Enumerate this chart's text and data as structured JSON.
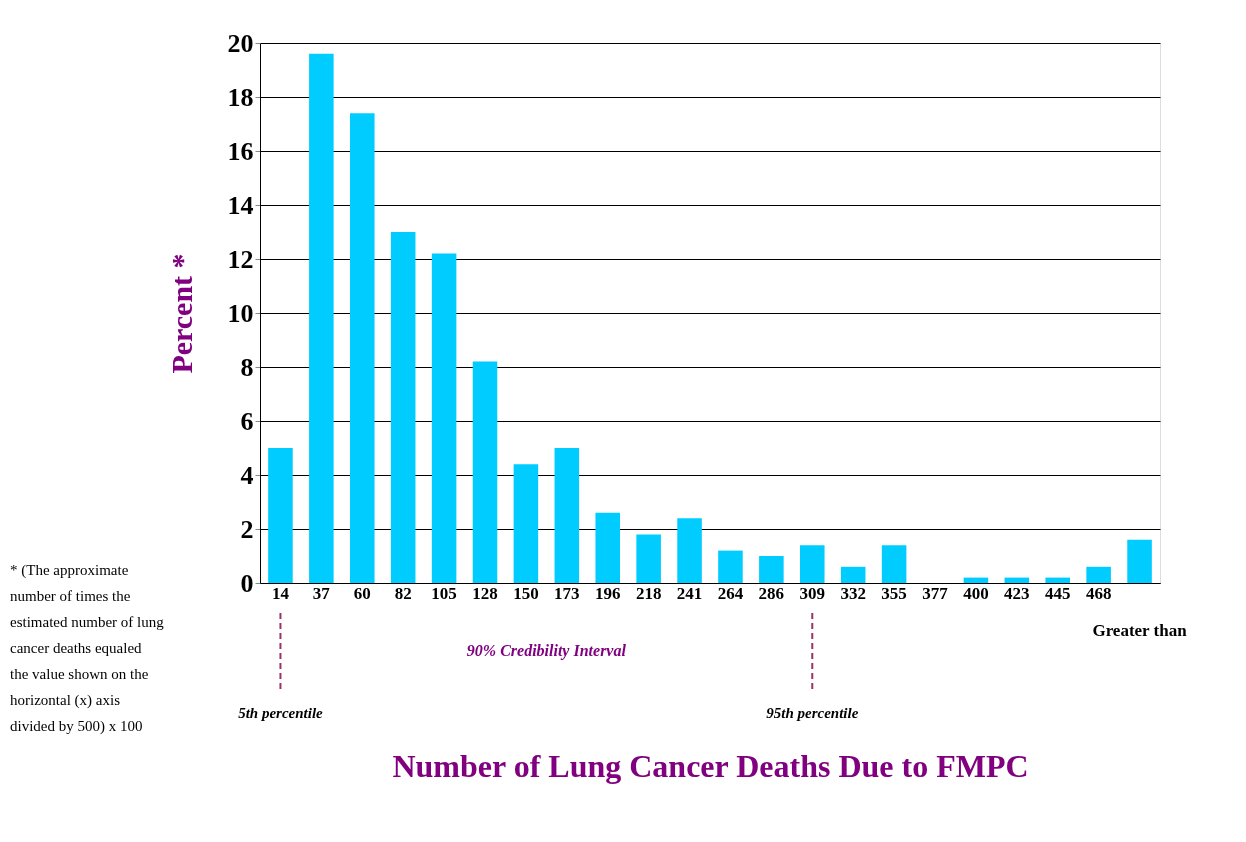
{
  "chart_data": {
    "type": "bar",
    "xlabel": "Number of Lung Cancer Deaths Due to FMPC",
    "ylabel": "Percent *",
    "categories": [
      "14",
      "37",
      "60",
      "82",
      "105",
      "128",
      "150",
      "173",
      "196",
      "218",
      "241",
      "264",
      "286",
      "309",
      "332",
      "355",
      "377",
      "400",
      "423",
      "445",
      "468",
      "Greater than"
    ],
    "series": [
      {
        "color": "#00ccff",
        "values": [
          5.0,
          19.6,
          17.4,
          13.0,
          12.2,
          8.2,
          4.4,
          5.0,
          2.6,
          1.8,
          2.4,
          1.2,
          1.0,
          1.4,
          0.6,
          1.4,
          0,
          0.2,
          0.2,
          0.2,
          0.6,
          1.6
        ]
      }
    ],
    "ylim": [
      0,
      20
    ],
    "yticks": [
      0,
      2,
      4,
      6,
      8,
      10,
      12,
      14,
      16,
      18,
      20
    ],
    "grid": "y",
    "ref_lines": [
      {
        "axis": "x",
        "value": "14",
        "label": "5th percentile",
        "color": "#993366",
        "line_style": "dashed"
      },
      {
        "axis": "x",
        "value": "309",
        "label": "95th percentile",
        "color": "#993366",
        "line_style": "dashed"
      }
    ],
    "annotations": [
      "90% Credibility Interval",
      "* (The approximate number of times the estimated number of lung cancer deaths equaled the value shown on the horizontal (x) axis divided by 500) x 100"
    ]
  }
}
